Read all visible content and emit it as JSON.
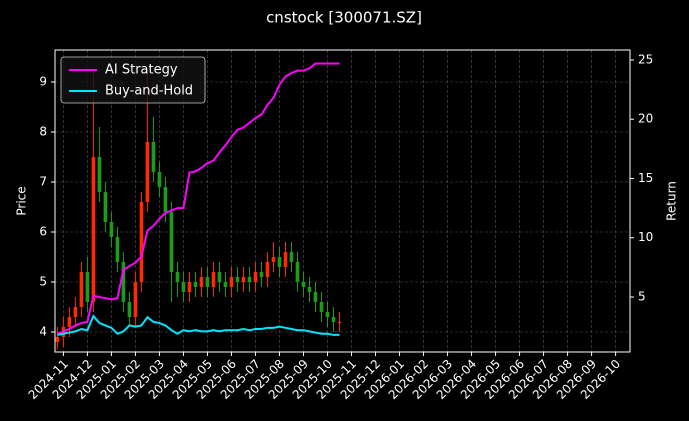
{
  "chart_data": {
    "type": "candlestick",
    "title": "cnstock [300071.SZ]",
    "y_label": "Price",
    "y2_label": "Return",
    "up_color": "#ff2a00",
    "down_color": "#1a9e1a",
    "grid": true,
    "legend": "upper left",
    "x": [
      -0.25,
      0,
      0.25,
      0.5,
      0.75,
      1,
      1.25,
      1.5,
      1.75,
      2,
      2.25,
      2.5,
      2.75,
      3,
      3.25,
      3.5,
      3.75,
      4,
      4.25,
      4.5,
      4.75,
      5,
      5.25,
      5.5,
      5.75,
      6,
      6.25,
      6.5,
      6.75,
      7,
      7.25,
      7.5,
      7.75,
      8,
      8.25,
      8.5,
      8.75,
      9,
      9.25,
      9.5,
      9.75,
      10,
      10.25,
      10.5,
      10.75,
      11,
      11.25,
      11.5
    ],
    "open": [
      3.8,
      3.9,
      4.1,
      4.3,
      4.5,
      5.2,
      4.6,
      7.5,
      6.8,
      6.2,
      5.9,
      5.4,
      4.6,
      4.3,
      5.0,
      6.6,
      7.8,
      7.2,
      6.9,
      6.4,
      5.2,
      5.0,
      4.8,
      5.0,
      4.9,
      5.1,
      4.9,
      5.2,
      5.0,
      4.9,
      5.1,
      5.0,
      5.1,
      5.0,
      5.2,
      5.1,
      5.4,
      5.5,
      5.3,
      5.6,
      5.4,
      5.0,
      4.9,
      4.8,
      4.6,
      4.4,
      4.3,
      4.2
    ],
    "high": [
      4.1,
      4.3,
      4.5,
      4.7,
      5.4,
      5.5,
      9.2,
      8.1,
      7.0,
      6.4,
      6.1,
      5.6,
      4.8,
      5.2,
      6.8,
      9.2,
      8.3,
      7.4,
      7.1,
      6.6,
      5.4,
      5.2,
      5.2,
      5.2,
      5.3,
      5.3,
      5.4,
      5.4,
      5.2,
      5.3,
      5.3,
      5.3,
      5.3,
      5.4,
      5.4,
      5.6,
      5.8,
      5.7,
      5.8,
      5.8,
      5.6,
      5.2,
      5.1,
      5.0,
      4.8,
      4.6,
      4.5,
      4.4
    ],
    "low": [
      3.65,
      3.7,
      3.9,
      4.1,
      4.3,
      4.4,
      4.4,
      6.6,
      6.0,
      5.7,
      5.2,
      4.4,
      4.1,
      4.1,
      4.8,
      6.4,
      7.0,
      6.7,
      6.2,
      4.6,
      4.7,
      4.6,
      4.6,
      4.7,
      4.7,
      4.7,
      4.7,
      4.8,
      4.7,
      4.7,
      4.8,
      4.8,
      4.8,
      4.8,
      4.9,
      4.9,
      5.2,
      5.1,
      5.1,
      5.2,
      4.8,
      4.7,
      4.6,
      4.4,
      4.2,
      4.1,
      4.0,
      4.0
    ],
    "close": [
      3.9,
      4.1,
      4.3,
      4.5,
      5.2,
      4.6,
      7.5,
      6.8,
      6.2,
      5.9,
      5.4,
      4.6,
      4.3,
      5.0,
      6.6,
      7.8,
      7.2,
      6.9,
      6.4,
      5.2,
      5.0,
      4.8,
      5.0,
      4.9,
      5.1,
      4.9,
      5.2,
      5.0,
      4.9,
      5.1,
      5.0,
      5.1,
      5.0,
      5.2,
      5.1,
      5.4,
      5.5,
      5.3,
      5.6,
      5.4,
      5.0,
      4.9,
      4.8,
      4.6,
      4.4,
      4.3,
      4.2,
      4.2
    ],
    "series": [
      {
        "name": "AI Strategy",
        "color": "#ff00ff",
        "axis": "y2",
        "values": [
          1.9,
          2.1,
          2.3,
          2.6,
          2.8,
          2.9,
          5.1,
          5.0,
          4.9,
          4.8,
          4.9,
          7.3,
          7.6,
          7.9,
          8.4,
          10.6,
          11.0,
          11.6,
          12.1,
          12.3,
          12.5,
          12.5,
          15.5,
          15.6,
          15.9,
          16.3,
          16.5,
          17.2,
          17.8,
          18.5,
          19.1,
          19.3,
          19.7,
          20.1,
          20.4,
          21.2,
          21.8,
          22.9,
          23.6,
          23.9,
          24.1,
          24.1,
          24.3,
          24.7,
          24.7,
          24.7,
          24.7,
          24.7
        ]
      },
      {
        "name": "Buy-and-Hold",
        "color": "#00e5ff",
        "axis": "y2",
        "values": [
          1.8,
          1.9,
          2.0,
          2.1,
          2.3,
          2.2,
          3.4,
          2.8,
          2.6,
          2.4,
          1.9,
          2.1,
          2.6,
          2.5,
          2.6,
          3.3,
          2.9,
          2.8,
          2.6,
          2.2,
          1.9,
          2.2,
          2.1,
          2.2,
          2.1,
          2.1,
          2.2,
          2.1,
          2.2,
          2.2,
          2.2,
          2.3,
          2.2,
          2.3,
          2.3,
          2.4,
          2.4,
          2.5,
          2.4,
          2.3,
          2.2,
          2.2,
          2.1,
          2.0,
          1.9,
          1.9,
          1.8,
          1.8
        ]
      }
    ],
    "xlim": [
      -0.35,
      23.6
    ],
    "xticks": [
      {
        "value": 0,
        "label": "2024-11"
      },
      {
        "value": 1,
        "label": "2024-12"
      },
      {
        "value": 2,
        "label": "2025-01"
      },
      {
        "value": 3,
        "label": "2025-02"
      },
      {
        "value": 4,
        "label": "2025-03"
      },
      {
        "value": 5,
        "label": "2025-04"
      },
      {
        "value": 6,
        "label": "2025-05"
      },
      {
        "value": 7,
        "label": "2025-06"
      },
      {
        "value": 8,
        "label": "2025-07"
      },
      {
        "value": 9,
        "label": "2025-08"
      },
      {
        "value": 10,
        "label": "2025-09"
      },
      {
        "value": 11,
        "label": "2025-10"
      },
      {
        "value": 12,
        "label": "2025-11"
      },
      {
        "value": 13,
        "label": "2025-12"
      },
      {
        "value": 14,
        "label": "2026-01"
      },
      {
        "value": 15,
        "label": "2026-02"
      },
      {
        "value": 16,
        "label": "2026-03"
      },
      {
        "value": 17,
        "label": "2026-04"
      },
      {
        "value": 18,
        "label": "2026-05"
      },
      {
        "value": 19,
        "label": "2026-06"
      },
      {
        "value": 20,
        "label": "2026-07"
      },
      {
        "value": 21,
        "label": "2026-08"
      },
      {
        "value": 22,
        "label": "2026-09"
      },
      {
        "value": 23,
        "label": "2026-10"
      }
    ],
    "ylim": [
      3.6,
      9.64
    ],
    "yticks": [
      4,
      5,
      6,
      7,
      8,
      9
    ],
    "y2lim": [
      0.36,
      25.84
    ],
    "y2ticks": [
      5,
      10,
      15,
      20,
      25
    ]
  }
}
